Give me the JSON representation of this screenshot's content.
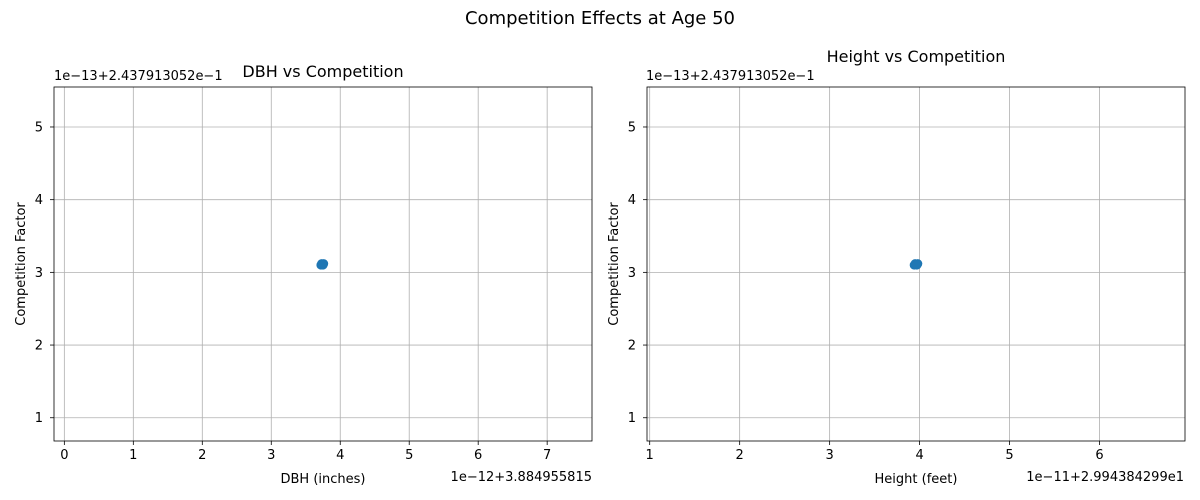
{
  "figure": {
    "title": "Competition Effects at Age 50"
  },
  "chart_data": [
    {
      "type": "scatter",
      "title": "DBH vs Competition",
      "xlabel": "DBH (inches)",
      "ylabel": "Competition Factor",
      "x_offset_text": "1e−12+3.884955815",
      "y_offset_text": "1e−13+2.437913052e−1",
      "xlim": [
        -0.15,
        7.65
      ],
      "ylim": [
        0.68,
        5.55
      ],
      "xticks": [
        0,
        1,
        2,
        3,
        4,
        5,
        6,
        7
      ],
      "xtick_labels": [
        "0",
        "1",
        "2",
        "3",
        "4",
        "5",
        "6",
        "7"
      ],
      "yticks": [
        1,
        2,
        3,
        4,
        5
      ],
      "ytick_labels": [
        "1",
        "2",
        "3",
        "4",
        "5"
      ],
      "grid": true,
      "color": "#1f77b4",
      "points": [
        {
          "x": 3.72,
          "y": 3.1
        },
        {
          "x": 3.74,
          "y": 3.11
        },
        {
          "x": 3.76,
          "y": 3.12
        },
        {
          "x": 3.73,
          "y": 3.12
        },
        {
          "x": 3.75,
          "y": 3.1
        }
      ]
    },
    {
      "type": "scatter",
      "title": "Height vs Competition",
      "xlabel": "Height (feet)",
      "ylabel": "Competition Factor",
      "x_offset_text": "1e−11+2.994384299e1",
      "y_offset_text": "1e−13+2.437913052e−1",
      "xlim": [
        0.97,
        6.95
      ],
      "ylim": [
        0.68,
        5.55
      ],
      "xticks": [
        1,
        2,
        3,
        4,
        5,
        6
      ],
      "xtick_labels": [
        "1",
        "2",
        "3",
        "4",
        "5",
        "6"
      ],
      "yticks": [
        1,
        2,
        3,
        4,
        5
      ],
      "ytick_labels": [
        "1",
        "2",
        "3",
        "4",
        "5"
      ],
      "grid": true,
      "color": "#1f77b4",
      "points": [
        {
          "x": 3.94,
          "y": 3.1
        },
        {
          "x": 3.96,
          "y": 3.11
        },
        {
          "x": 3.98,
          "y": 3.12
        },
        {
          "x": 3.95,
          "y": 3.12
        },
        {
          "x": 3.97,
          "y": 3.1
        }
      ]
    }
  ]
}
